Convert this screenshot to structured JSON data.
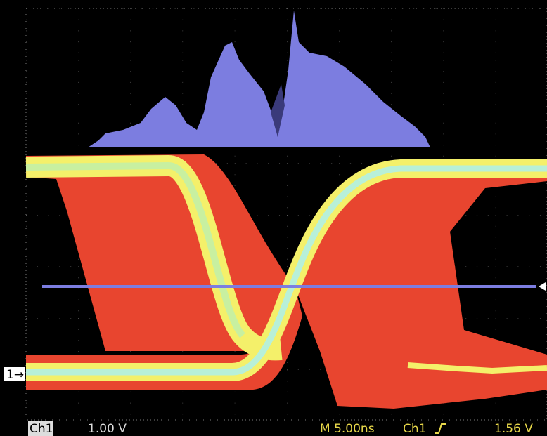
{
  "status_bar": {
    "channel": "Ch1",
    "volts_per_div": "1.00 V",
    "timebase": "M 5.00ns",
    "trigger_channel": "Ch1",
    "trigger_level": "1.56 V"
  },
  "channel_marker": "1→"
}
